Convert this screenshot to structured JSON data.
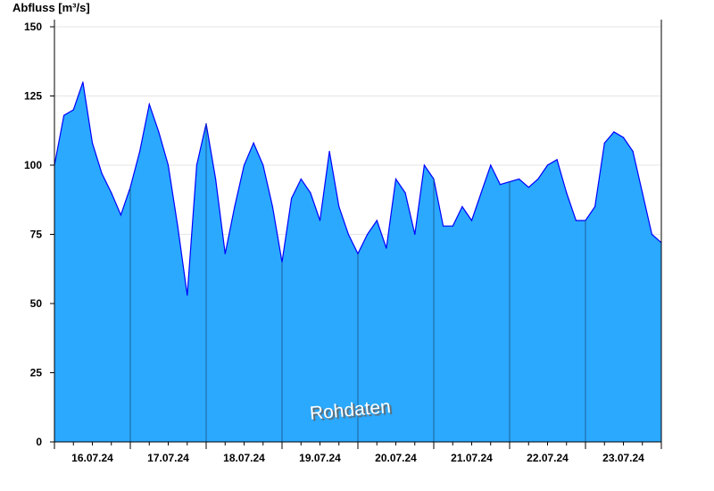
{
  "chart_data": {
    "type": "area",
    "title": "",
    "ylabel": "Abfluss [m³/s]",
    "xlabel": "",
    "ylim": [
      0,
      150
    ],
    "yticks": [
      0,
      25,
      50,
      75,
      100,
      125,
      150
    ],
    "xlim": [
      "16.07.24 00:00",
      "24.07.24 00:00"
    ],
    "xtick_labels": [
      "16.07.24",
      "17.07.24",
      "18.07.24",
      "19.07.24",
      "20.07.24",
      "21.07.24",
      "22.07.24",
      "23.07.24"
    ],
    "grid": true,
    "fill_color": "#2aa9ff",
    "line_color": "#0000ff",
    "watermark": "Rohdaten",
    "series": [
      {
        "x_hours_from_start_of_16_07": [
          0,
          3,
          6,
          9,
          12,
          15,
          18,
          21,
          24,
          27,
          30,
          33,
          36,
          39,
          42,
          45,
          48,
          51,
          54,
          57,
          60,
          63,
          66,
          69,
          72,
          75,
          78,
          81,
          84,
          87,
          90,
          93,
          96,
          99,
          102,
          105,
          108,
          111,
          114,
          117,
          120,
          123,
          126,
          129,
          132,
          135,
          138,
          141,
          144,
          147,
          150,
          153,
          156,
          159,
          162,
          165,
          168,
          171,
          174,
          177,
          180,
          183,
          186,
          189,
          192
        ],
        "values": [
          100,
          118,
          120,
          130,
          108,
          97,
          90,
          82,
          92,
          105,
          122,
          112,
          100,
          78,
          53,
          100,
          115,
          95,
          68,
          85,
          100,
          108,
          100,
          85,
          65,
          88,
          95,
          90,
          80,
          105,
          85,
          75,
          68,
          75,
          80,
          70,
          95,
          90,
          75,
          100,
          95,
          78,
          78,
          85,
          80,
          90,
          100,
          93,
          94,
          95,
          92,
          95,
          100,
          102,
          90,
          80,
          80,
          85,
          108,
          112,
          110,
          105,
          90,
          75,
          72
        ]
      }
    ]
  }
}
